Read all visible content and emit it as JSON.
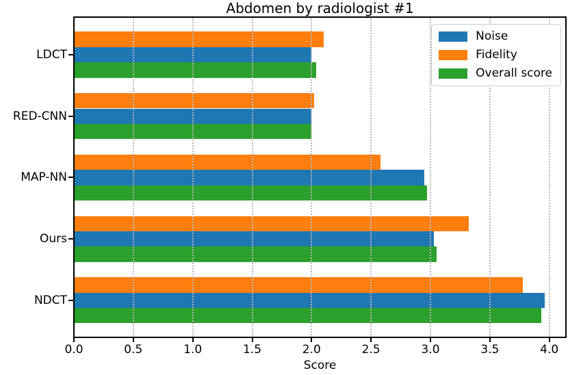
{
  "chart_data": {
    "type": "bar",
    "orientation": "horizontal",
    "title": "Abdomen by radiologist #1",
    "xlabel": "Score",
    "ylabel": "",
    "categories": [
      "LDCT",
      "RED-CNN",
      "MAP-NN",
      "Ours",
      "NDCT"
    ],
    "series": [
      {
        "name": "Noise",
        "color": "#1f77b4",
        "values": [
          2.0,
          2.0,
          2.95,
          3.03,
          3.96
        ]
      },
      {
        "name": "Fidelity",
        "color": "#ff7f0e",
        "values": [
          2.1,
          2.02,
          2.58,
          3.32,
          3.78
        ]
      },
      {
        "name": "Overall score",
        "color": "#2ca02c",
        "values": [
          2.04,
          2.0,
          2.97,
          3.05,
          3.93
        ]
      }
    ],
    "bar_row_order_top_to_bottom": [
      "Fidelity",
      "Noise",
      "Overall score"
    ],
    "xlim": [
      0,
      4.14
    ],
    "x_ticks": [
      "0.0",
      "0.5",
      "1.0",
      "1.5",
      "2.0",
      "2.5",
      "3.0",
      "3.5",
      "4.0"
    ],
    "grid": "vertical-dotted, drawn above bars",
    "legend": {
      "position": "upper-right",
      "entries": [
        "Noise",
        "Fidelity",
        "Overall score"
      ]
    }
  }
}
